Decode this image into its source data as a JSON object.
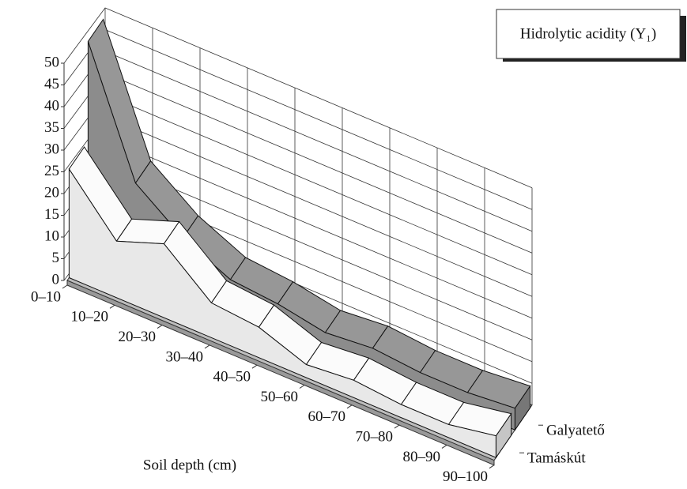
{
  "chart_data": {
    "type": "area3d",
    "legend_title": "Hidrolytic acidity (Y₁)",
    "x_label": "Soil depth (cm)",
    "categories": [
      "0–10",
      "10–20",
      "20–30",
      "30–40",
      "40–50",
      "50–60",
      "60–70",
      "70–80",
      "80–90",
      "90–100"
    ],
    "series": [
      {
        "name": "Tamáskút",
        "color": "#e8e8e8",
        "values": [
          25,
          13,
          17,
          8,
          7,
          3,
          4,
          3,
          3,
          5
        ]
      },
      {
        "name": "Galyatető",
        "color": "#8c8c8c",
        "values": [
          48,
          20,
          12,
          7,
          6,
          4,
          5,
          4,
          4,
          5
        ]
      }
    ],
    "ylim": [
      0,
      50
    ],
    "yticks": [
      0,
      5,
      10,
      15,
      20,
      25,
      30,
      35,
      40,
      45,
      50
    ],
    "grid": true
  }
}
